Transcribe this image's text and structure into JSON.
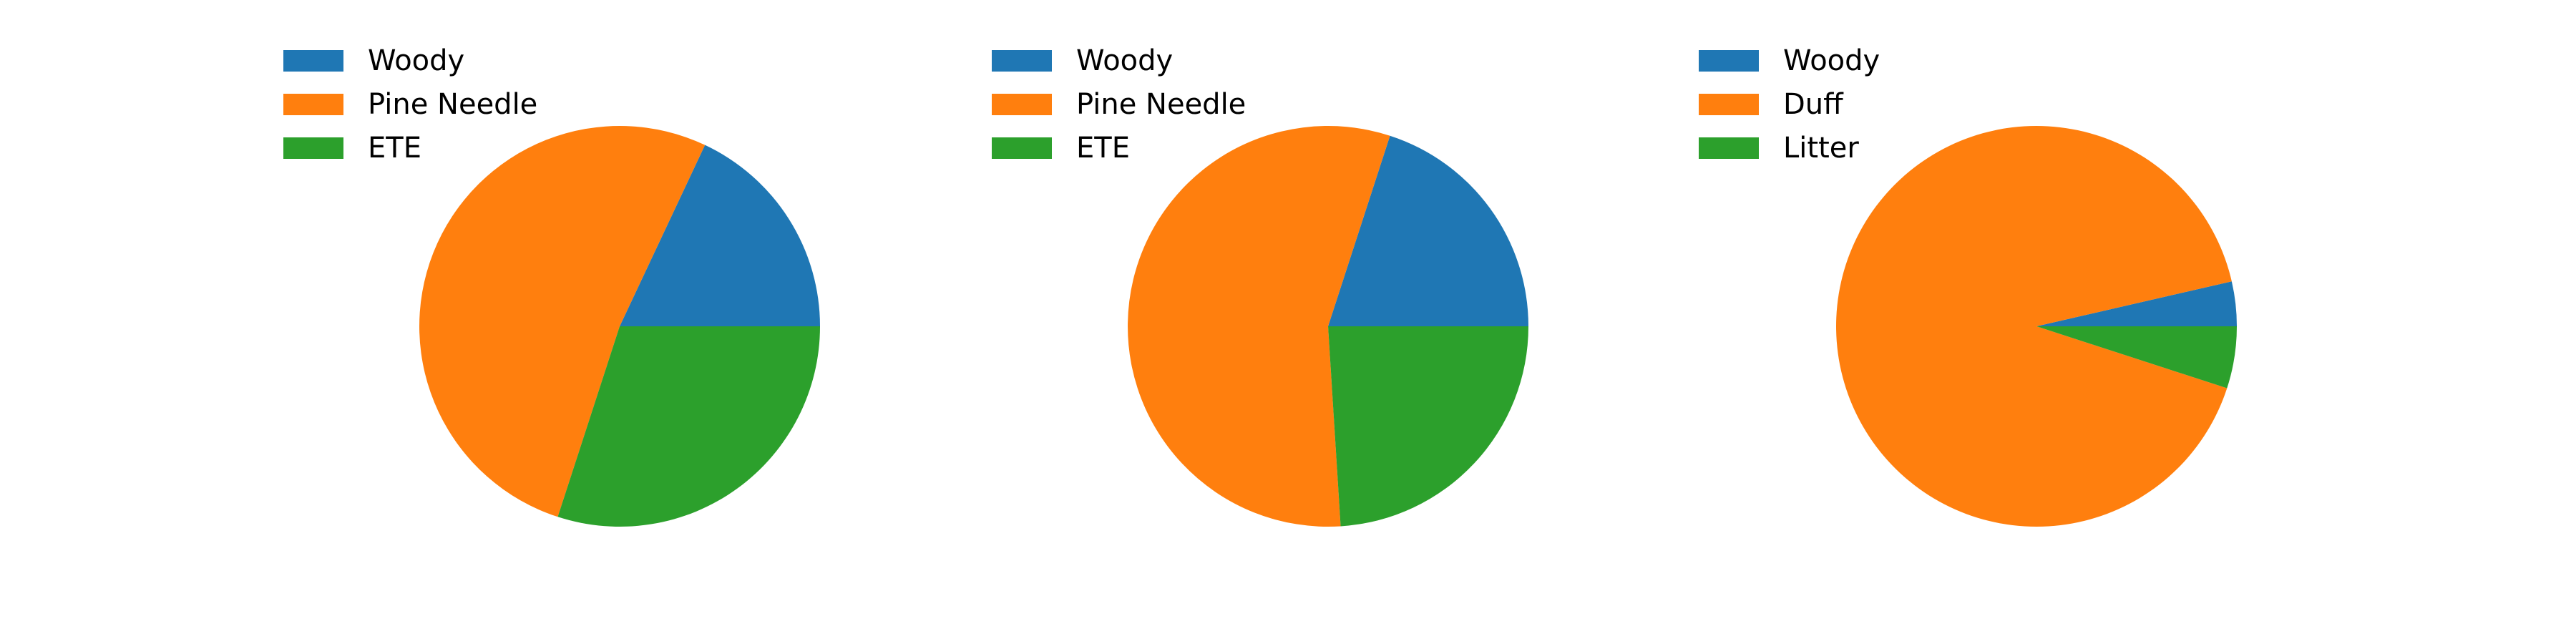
{
  "chart_data": [
    {
      "type": "pie",
      "categories": [
        "Woody",
        "Pine Needle",
        "ETE"
      ],
      "values": [
        18,
        52,
        30
      ],
      "colors": [
        "#1f77b4",
        "#ff7f0e",
        "#2ca02c"
      ],
      "legend_placement": "top-left"
    },
    {
      "type": "pie",
      "categories": [
        "Woody",
        "Pine Needle",
        "ETE"
      ],
      "values": [
        20,
        56,
        24
      ],
      "colors": [
        "#1f77b4",
        "#ff7f0e",
        "#2ca02c"
      ],
      "legend_placement": "top-left"
    },
    {
      "type": "pie",
      "categories": [
        "Woody",
        "Duff",
        "Litter"
      ],
      "values": [
        3.6,
        91.4,
        5.0
      ],
      "colors": [
        "#1f77b4",
        "#ff7f0e",
        "#2ca02c"
      ],
      "legend_placement": "top-left"
    }
  ]
}
